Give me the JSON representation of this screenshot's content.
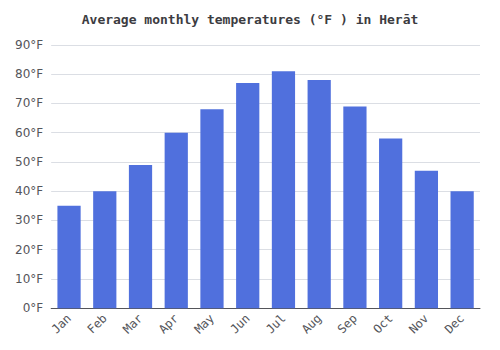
{
  "chart_data": {
    "type": "bar",
    "title": "Average monthly temperatures (°F ) in Herāt",
    "categories": [
      "Jan",
      "Feb",
      "Mar",
      "Apr",
      "May",
      "Jun",
      "Jul",
      "Aug",
      "Sep",
      "Oct",
      "Nov",
      "Dec"
    ],
    "values": [
      35,
      40,
      49,
      60,
      68,
      77,
      81,
      78,
      69,
      58,
      47,
      40
    ],
    "ylim": [
      0,
      90
    ],
    "yticks": [
      {
        "value": 0,
        "label": "0°F"
      },
      {
        "value": 10,
        "label": "10°F"
      },
      {
        "value": 20,
        "label": "20°F"
      },
      {
        "value": 30,
        "label": "30°F"
      },
      {
        "value": 40,
        "label": "40°F"
      },
      {
        "value": 50,
        "label": "50°F"
      },
      {
        "value": 60,
        "label": "60°F"
      },
      {
        "value": 70,
        "label": "70°F"
      },
      {
        "value": 80,
        "label": "80°F"
      },
      {
        "value": 90,
        "label": "90°F"
      }
    ],
    "grid": true
  }
}
